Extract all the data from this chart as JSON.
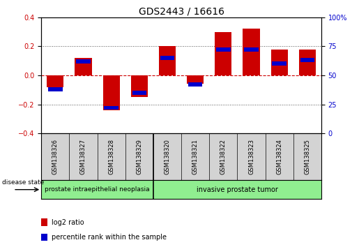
{
  "title": "GDS2443 / 16616",
  "samples": [
    "GSM138326",
    "GSM138327",
    "GSM138328",
    "GSM138329",
    "GSM138320",
    "GSM138321",
    "GSM138322",
    "GSM138323",
    "GSM138324",
    "GSM138325"
  ],
  "log2_ratio": [
    -0.08,
    0.12,
    -0.24,
    -0.15,
    0.2,
    -0.06,
    0.3,
    0.32,
    0.18,
    0.18
  ],
  "percentile_rank": [
    38,
    62,
    22,
    35,
    65,
    42,
    72,
    72,
    60,
    63
  ],
  "groups": [
    {
      "label": "prostate intraepithelial neoplasia",
      "start": 0,
      "end": 4
    },
    {
      "label": "invasive prostate tumor",
      "start": 4,
      "end": 10
    }
  ],
  "group_boundary": 4,
  "ylim": [
    -0.4,
    0.4
  ],
  "y2lim": [
    0,
    100
  ],
  "yticks": [
    -0.4,
    -0.2,
    0.0,
    0.2,
    0.4
  ],
  "y2ticks": [
    0,
    25,
    50,
    75,
    100
  ],
  "log2_color": "#cc0000",
  "percentile_color": "#0000cc",
  "plot_bg_color": "#ffffff",
  "group_bg_color": "#90EE90",
  "sample_bg_color": "#d3d3d3",
  "legend_log2": "log2 ratio",
  "legend_pct": "percentile rank within the sample",
  "disease_label": "disease state",
  "zero_line_color": "#cc0000",
  "dotted_line_color": "#555555",
  "title_fontsize": 10,
  "tick_fontsize": 7
}
